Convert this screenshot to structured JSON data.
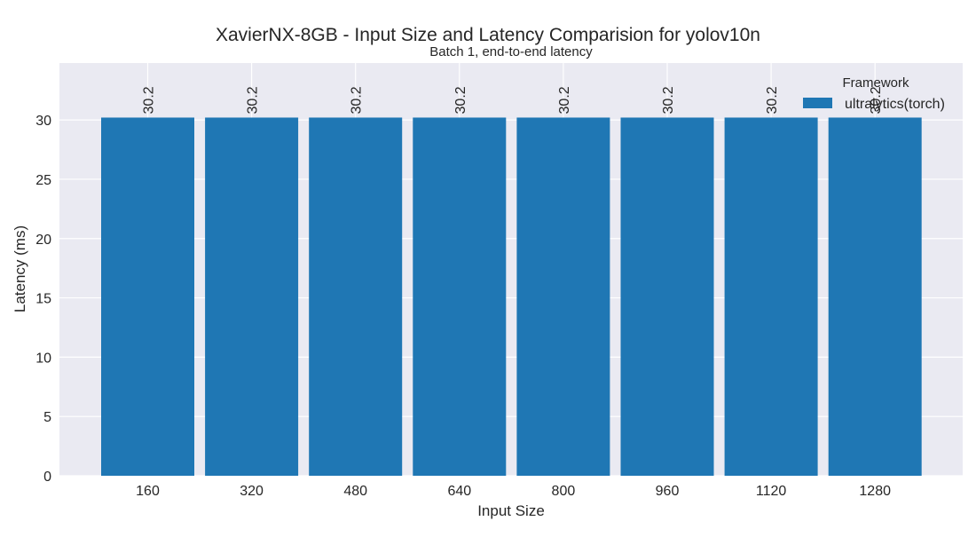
{
  "chart_data": {
    "type": "bar",
    "title": "XavierNX-8GB - Input Size and Latency Comparision for yolov10n",
    "subtitle": "Batch 1, end-to-end latency",
    "xlabel": "Input Size",
    "ylabel": "Latency (ms)",
    "categories": [
      "160",
      "320",
      "480",
      "640",
      "800",
      "960",
      "1120",
      "1280"
    ],
    "series": [
      {
        "name": "ultralytics(torch)",
        "values": [
          30.2,
          30.2,
          30.2,
          30.2,
          30.2,
          30.2,
          30.2,
          30.2
        ],
        "color": "#1f77b4"
      }
    ],
    "value_labels": [
      "30.2",
      "30.2",
      "30.2",
      "30.2",
      "30.2",
      "30.2",
      "30.2",
      "30.2"
    ],
    "yticks": [
      "0",
      "5",
      "10",
      "15",
      "20",
      "25",
      "30"
    ],
    "ylim": [
      0,
      34.8
    ],
    "grid": true,
    "legend": {
      "title": "Framework",
      "position": "top-right"
    },
    "colors": {
      "plot_background": "#eaeaf2",
      "grid": "#ffffff",
      "bar": "#1f77b4"
    }
  }
}
